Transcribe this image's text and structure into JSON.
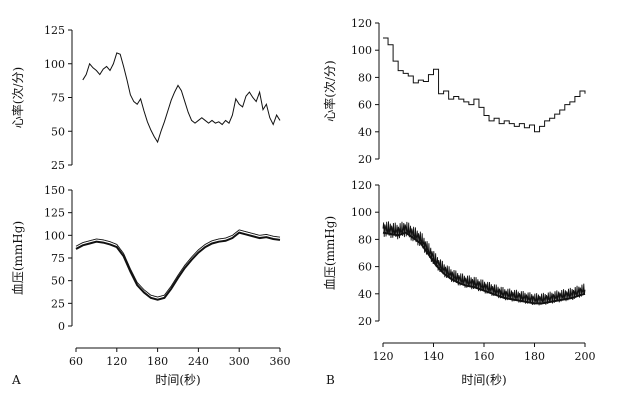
{
  "chart_data": [
    {
      "panel": "A",
      "type": "line",
      "ylabel": "心率(次/分)",
      "xlim": [
        60,
        360
      ],
      "ylim": [
        25,
        125
      ],
      "yticks": [
        25,
        50,
        75,
        100,
        125
      ],
      "series": [
        {
          "x": [
            70,
            75,
            80,
            85,
            90,
            95,
            100,
            105,
            110,
            115,
            120,
            125,
            130,
            135,
            140,
            145,
            150,
            155,
            160,
            165,
            170,
            175,
            180,
            185,
            190,
            195,
            200,
            205,
            210,
            215,
            220,
            225,
            230,
            235,
            240,
            245,
            250,
            255,
            260,
            265,
            270,
            275,
            280,
            285,
            290,
            295,
            300,
            305,
            310,
            315,
            320,
            325,
            330,
            335,
            340,
            345,
            350,
            355,
            360
          ],
          "y": [
            88,
            92,
            100,
            97,
            95,
            92,
            96,
            98,
            95,
            100,
            108,
            107,
            98,
            88,
            77,
            72,
            70,
            74,
            65,
            57,
            51,
            46,
            42,
            50,
            57,
            65,
            73,
            79,
            84,
            80,
            72,
            64,
            58,
            56,
            58,
            60,
            58,
            56,
            58,
            56,
            57,
            55,
            58,
            56,
            62,
            74,
            70,
            68,
            76,
            79,
            75,
            72,
            79,
            66,
            70,
            60,
            55,
            62,
            58
          ]
        }
      ]
    },
    {
      "panel": "A",
      "type": "line",
      "ylabel": "血压(mmHg)",
      "xlabel": "时间(秒)",
      "xlim": [
        60,
        360
      ],
      "ylim": [
        0,
        150
      ],
      "xticks": [
        60,
        120,
        180,
        240,
        300,
        360
      ],
      "yticks": [
        0,
        25,
        50,
        75,
        100,
        125,
        150
      ],
      "series": [
        {
          "x": [
            60,
            70,
            80,
            90,
            100,
            110,
            120,
            130,
            140,
            150,
            160,
            170,
            180,
            190,
            200,
            210,
            220,
            230,
            240,
            250,
            260,
            270,
            280,
            290,
            300,
            310,
            320,
            330,
            340,
            350,
            360
          ],
          "y": [
            88,
            92,
            94,
            96,
            95,
            93,
            90,
            80,
            63,
            48,
            40,
            34,
            32,
            34,
            44,
            56,
            67,
            76,
            84,
            90,
            94,
            96,
            97,
            100,
            106,
            104,
            102,
            100,
            101,
            99,
            98
          ]
        }
      ]
    },
    {
      "panel": "B",
      "type": "line",
      "ylabel": "心率(次/分)",
      "xlim": [
        120,
        200
      ],
      "ylim": [
        20,
        120
      ],
      "yticks": [
        20,
        40,
        60,
        80,
        100,
        120
      ],
      "series": [
        {
          "x": [
            120,
            122,
            124,
            126,
            128,
            130,
            132,
            134,
            136,
            138,
            140,
            142,
            144,
            146,
            148,
            150,
            152,
            154,
            156,
            158,
            160,
            162,
            164,
            166,
            168,
            170,
            172,
            174,
            176,
            178,
            180,
            182,
            184,
            186,
            188,
            190,
            192,
            194,
            196,
            198,
            200
          ],
          "y": [
            109,
            104,
            92,
            85,
            83,
            81,
            76,
            78,
            77,
            82,
            86,
            68,
            70,
            64,
            66,
            64,
            62,
            60,
            64,
            58,
            52,
            48,
            50,
            46,
            48,
            46,
            44,
            46,
            43,
            45,
            40,
            44,
            48,
            50,
            53,
            56,
            60,
            62,
            66,
            70,
            68
          ]
        }
      ]
    },
    {
      "panel": "B",
      "type": "line",
      "ylabel": "血压(mmHg)",
      "xlabel": "时间(秒)",
      "xlim": [
        120,
        200
      ],
      "ylim": [
        20,
        120
      ],
      "xticks": [
        120,
        140,
        160,
        180,
        200
      ],
      "yticks": [
        20,
        40,
        60,
        80,
        100,
        120
      ],
      "series": [
        {
          "x": [
            120,
            123,
            126,
            129,
            132,
            135,
            138,
            141,
            144,
            147,
            150,
            153,
            156,
            159,
            162,
            165,
            168,
            171,
            174,
            177,
            180,
            183,
            186,
            189,
            192,
            195,
            198,
            200
          ],
          "y": [
            88,
            87,
            86,
            88,
            84,
            80,
            72,
            64,
            58,
            54,
            51,
            49,
            48,
            46,
            44,
            42,
            40,
            39,
            38,
            37,
            36,
            36,
            37,
            38,
            39,
            40,
            42,
            43
          ]
        }
      ]
    }
  ],
  "panel_labels": [
    "A",
    "B"
  ]
}
